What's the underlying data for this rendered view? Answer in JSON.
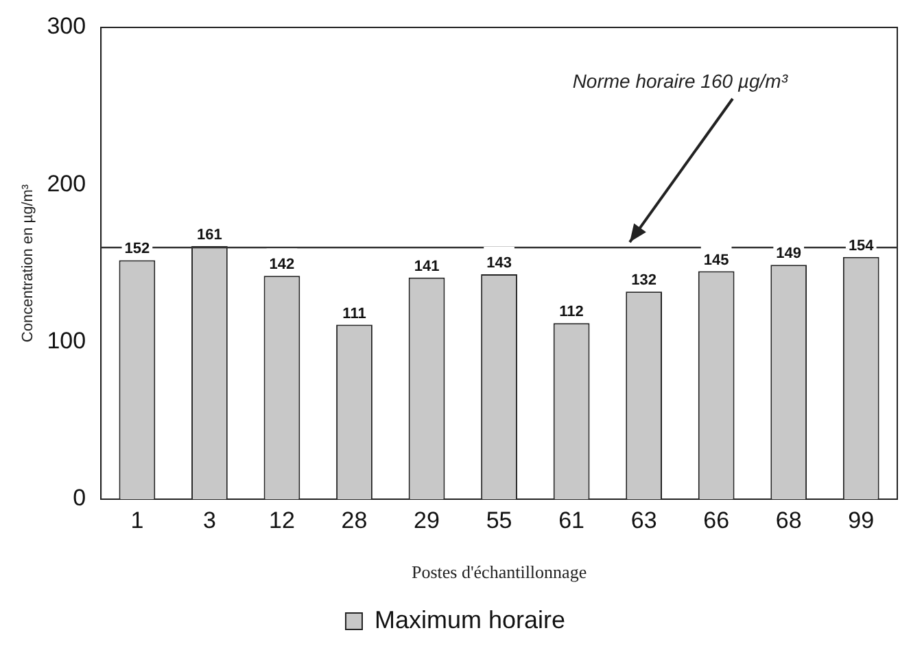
{
  "chart_data": {
    "type": "bar",
    "categories": [
      "1",
      "3",
      "12",
      "28",
      "29",
      "55",
      "61",
      "63",
      "66",
      "68",
      "99"
    ],
    "series": [
      {
        "name": "Maximum horaire",
        "color": "#c8c8c8",
        "values": [
          152,
          161,
          142,
          111,
          141,
          143,
          112,
          132,
          145,
          149,
          154
        ]
      }
    ],
    "xlabel": "Postes d'échantillonnage",
    "ylabel": "Concentration en µg/m³",
    "ylim": [
      0,
      300
    ],
    "yticks": [
      0,
      100,
      200,
      300
    ],
    "grid": false,
    "legend": "bottom",
    "data_labels": true,
    "ref_lines": [
      {
        "axis": "y",
        "value": 160,
        "label": "Norme horaire 160 µg/m³",
        "color": "#333333"
      }
    ]
  }
}
